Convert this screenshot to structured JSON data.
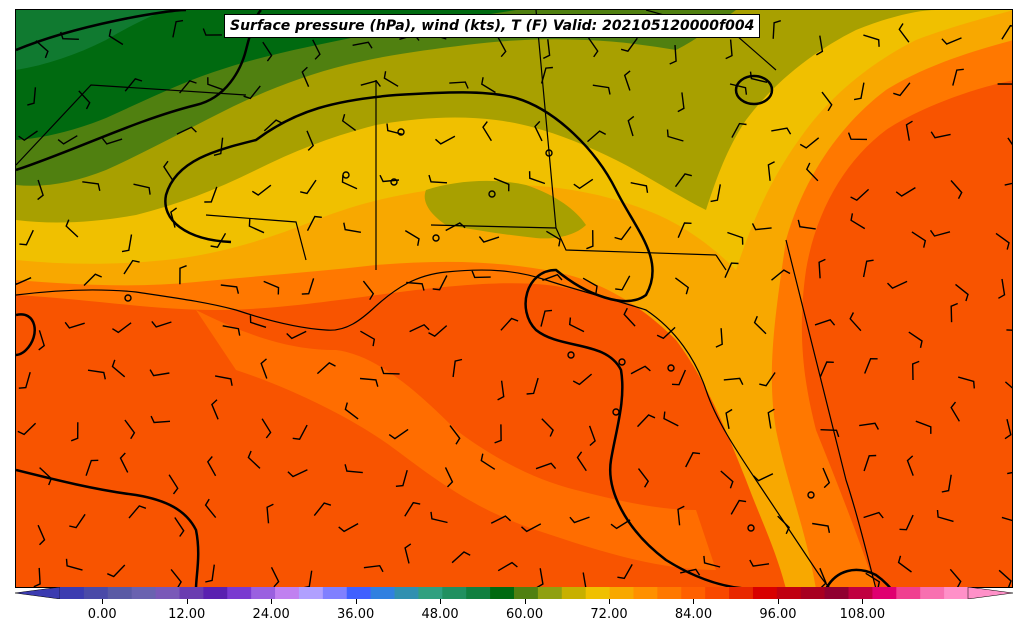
{
  "title": "Surface pressure (hPa), wind (kts), T (F) Valid: 202105120000f004",
  "colorbar": {
    "ticks": [
      "0.00",
      "12.00",
      "24.00",
      "36.00",
      "48.00",
      "60.00",
      "72.00",
      "84.00",
      "96.00",
      "108.00"
    ],
    "min": -6,
    "max": 123,
    "extend": "both",
    "colors": [
      "#3b3bb0",
      "#4a4aa8",
      "#5a5aa5",
      "#6a62b0",
      "#7a58b8",
      "#6a3cb0",
      "#5a20b0",
      "#7a3ad0",
      "#9a60e0",
      "#c080f0",
      "#b0a0ff",
      "#8080ff",
      "#4060ff",
      "#3080e0",
      "#3090b0",
      "#30a080",
      "#209060",
      "#108040",
      "#006a10",
      "#508010",
      "#90a010",
      "#c8b000",
      "#f0c000",
      "#f8a800",
      "#ff9000",
      "#ff7800",
      "#ff6000",
      "#f84800",
      "#e82800",
      "#d80000",
      "#c00010",
      "#a80020",
      "#900030",
      "#c00040",
      "#e00070",
      "#f04090",
      "#f870b0",
      "#ff90c8"
    ]
  },
  "map": {
    "region": "Southeastern United States and Gulf of Mexico",
    "fields": [
      "temperature (F) filled contours",
      "surface pressure (hPa) isobars",
      "wind barbs (kts)"
    ],
    "colors": {
      "hot": "#f85400",
      "warm": "#ff7800",
      "mild": "#f8a800",
      "yellow": "#f0c000",
      "olive": "#a8a000",
      "green": "#508010",
      "dark_green": "#006a10",
      "isobar": "#000000"
    }
  }
}
